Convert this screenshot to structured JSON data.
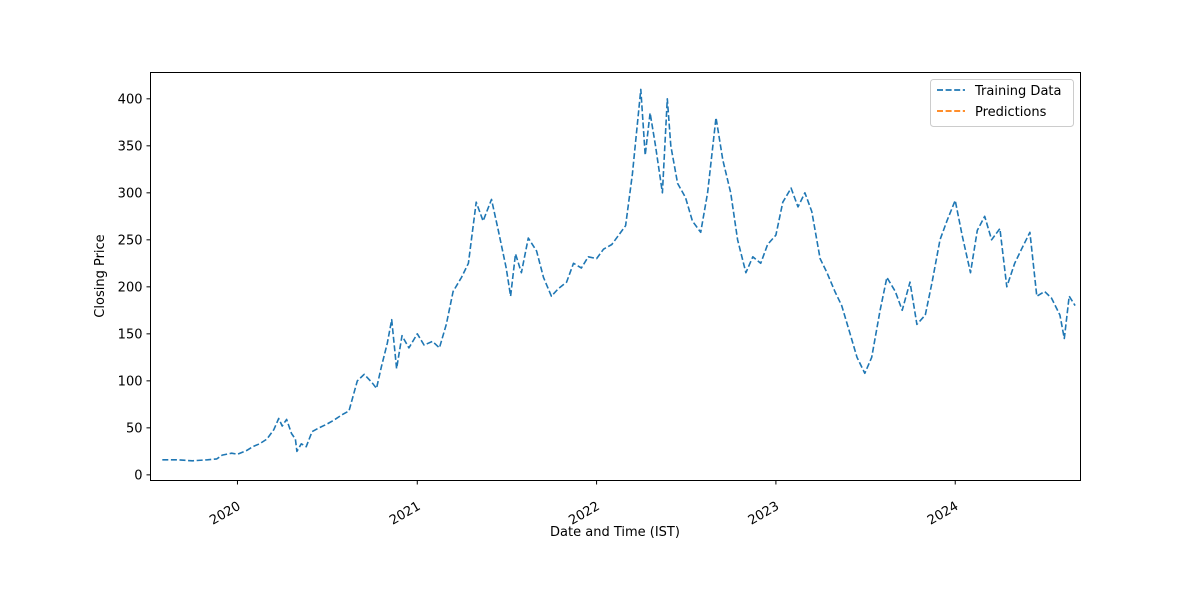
{
  "chart_data": {
    "type": "line",
    "title": "",
    "xlabel": "Date and Time (IST)",
    "ylabel": "Closing Price",
    "x_axis_type": "date",
    "xlim": [
      "2019-07-08",
      "2024-09-12"
    ],
    "ylim": [
      -6,
      428
    ],
    "x_ticks": [
      {
        "date": "2020-01-01",
        "label": "2020"
      },
      {
        "date": "2021-01-01",
        "label": "2021"
      },
      {
        "date": "2022-01-01",
        "label": "2022"
      },
      {
        "date": "2023-01-01",
        "label": "2023"
      },
      {
        "date": "2024-01-01",
        "label": "2024"
      }
    ],
    "y_ticks": [
      0,
      50,
      100,
      150,
      200,
      250,
      300,
      350,
      400
    ],
    "grid": false,
    "legend_position": "top-right",
    "series": [
      {
        "name": "Training Data",
        "color": "#1f77b4",
        "line_style": "dashed",
        "points": [
          [
            "2019-08-01",
            16
          ],
          [
            "2019-09-01",
            16
          ],
          [
            "2019-10-01",
            15
          ],
          [
            "2019-11-01",
            16
          ],
          [
            "2019-11-20",
            17
          ],
          [
            "2019-12-01",
            21
          ],
          [
            "2019-12-20",
            23
          ],
          [
            "2020-01-01",
            22
          ],
          [
            "2020-01-20",
            26
          ],
          [
            "2020-02-01",
            30
          ],
          [
            "2020-02-15",
            33
          ],
          [
            "2020-03-01",
            38
          ],
          [
            "2020-03-15",
            48
          ],
          [
            "2020-03-25",
            60
          ],
          [
            "2020-04-01",
            52
          ],
          [
            "2020-04-10",
            59
          ],
          [
            "2020-04-20",
            44
          ],
          [
            "2020-04-28",
            38
          ],
          [
            "2020-05-01",
            25
          ],
          [
            "2020-05-10",
            33
          ],
          [
            "2020-05-20",
            30
          ],
          [
            "2020-06-01",
            46
          ],
          [
            "2020-06-15",
            50
          ],
          [
            "2020-07-01",
            54
          ],
          [
            "2020-07-15",
            58
          ],
          [
            "2020-08-01",
            64
          ],
          [
            "2020-08-15",
            68
          ],
          [
            "2020-09-01",
            100
          ],
          [
            "2020-09-15",
            107
          ],
          [
            "2020-10-01",
            98
          ],
          [
            "2020-10-10",
            92
          ],
          [
            "2020-10-20",
            115
          ],
          [
            "2020-11-01",
            140
          ],
          [
            "2020-11-10",
            165
          ],
          [
            "2020-11-20",
            113
          ],
          [
            "2020-12-01",
            148
          ],
          [
            "2020-12-15",
            135
          ],
          [
            "2021-01-01",
            150
          ],
          [
            "2021-01-15",
            138
          ],
          [
            "2021-02-01",
            142
          ],
          [
            "2021-02-15",
            135
          ],
          [
            "2021-03-01",
            160
          ],
          [
            "2021-03-15",
            195
          ],
          [
            "2021-04-01",
            210
          ],
          [
            "2021-04-15",
            225
          ],
          [
            "2021-05-01",
            290
          ],
          [
            "2021-05-15",
            270
          ],
          [
            "2021-06-01",
            293
          ],
          [
            "2021-06-15",
            260
          ],
          [
            "2021-07-01",
            220
          ],
          [
            "2021-07-10",
            190
          ],
          [
            "2021-07-20",
            235
          ],
          [
            "2021-08-01",
            215
          ],
          [
            "2021-08-15",
            252
          ],
          [
            "2021-09-01",
            238
          ],
          [
            "2021-09-15",
            210
          ],
          [
            "2021-10-01",
            190
          ],
          [
            "2021-10-15",
            198
          ],
          [
            "2021-11-01",
            205
          ],
          [
            "2021-11-15",
            225
          ],
          [
            "2021-12-01",
            220
          ],
          [
            "2021-12-15",
            232
          ],
          [
            "2022-01-01",
            230
          ],
          [
            "2022-01-15",
            240
          ],
          [
            "2022-02-01",
            245
          ],
          [
            "2022-02-15",
            255
          ],
          [
            "2022-03-01",
            265
          ],
          [
            "2022-03-15",
            320
          ],
          [
            "2022-04-01",
            410
          ],
          [
            "2022-04-10",
            340
          ],
          [
            "2022-04-20",
            385
          ],
          [
            "2022-05-01",
            350
          ],
          [
            "2022-05-15",
            300
          ],
          [
            "2022-05-25",
            400
          ],
          [
            "2022-06-01",
            350
          ],
          [
            "2022-06-15",
            310
          ],
          [
            "2022-07-01",
            295
          ],
          [
            "2022-07-15",
            270
          ],
          [
            "2022-08-01",
            258
          ],
          [
            "2022-08-15",
            300
          ],
          [
            "2022-09-01",
            380
          ],
          [
            "2022-09-15",
            335
          ],
          [
            "2022-10-01",
            300
          ],
          [
            "2022-10-15",
            250
          ],
          [
            "2022-11-01",
            215
          ],
          [
            "2022-11-15",
            232
          ],
          [
            "2022-12-01",
            225
          ],
          [
            "2022-12-15",
            245
          ],
          [
            "2023-01-01",
            255
          ],
          [
            "2023-01-15",
            290
          ],
          [
            "2023-02-01",
            305
          ],
          [
            "2023-02-15",
            285
          ],
          [
            "2023-03-01",
            300
          ],
          [
            "2023-03-15",
            280
          ],
          [
            "2023-04-01",
            230
          ],
          [
            "2023-04-15",
            215
          ],
          [
            "2023-05-01",
            195
          ],
          [
            "2023-05-15",
            180
          ],
          [
            "2023-06-01",
            150
          ],
          [
            "2023-06-15",
            125
          ],
          [
            "2023-07-01",
            108
          ],
          [
            "2023-07-15",
            125
          ],
          [
            "2023-08-01",
            175
          ],
          [
            "2023-08-15",
            210
          ],
          [
            "2023-09-01",
            195
          ],
          [
            "2023-09-15",
            175
          ],
          [
            "2023-10-01",
            205
          ],
          [
            "2023-10-15",
            160
          ],
          [
            "2023-11-01",
            170
          ],
          [
            "2023-11-15",
            205
          ],
          [
            "2023-12-01",
            250
          ],
          [
            "2023-12-15",
            270
          ],
          [
            "2024-01-01",
            292
          ],
          [
            "2024-01-15",
            255
          ],
          [
            "2024-02-01",
            215
          ],
          [
            "2024-02-15",
            260
          ],
          [
            "2024-03-01",
            275
          ],
          [
            "2024-03-15",
            250
          ],
          [
            "2024-04-01",
            262
          ],
          [
            "2024-04-15",
            200
          ],
          [
            "2024-05-01",
            225
          ],
          [
            "2024-05-15",
            240
          ],
          [
            "2024-06-01",
            258
          ],
          [
            "2024-06-15",
            190
          ],
          [
            "2024-07-01",
            195
          ],
          [
            "2024-07-15",
            188
          ],
          [
            "2024-08-01",
            170
          ],
          [
            "2024-08-10",
            145
          ],
          [
            "2024-08-20",
            190
          ],
          [
            "2024-09-01",
            180
          ]
        ]
      },
      {
        "name": "Predictions",
        "color": "#ff7f0e",
        "line_style": "dashed",
        "points": []
      }
    ]
  }
}
